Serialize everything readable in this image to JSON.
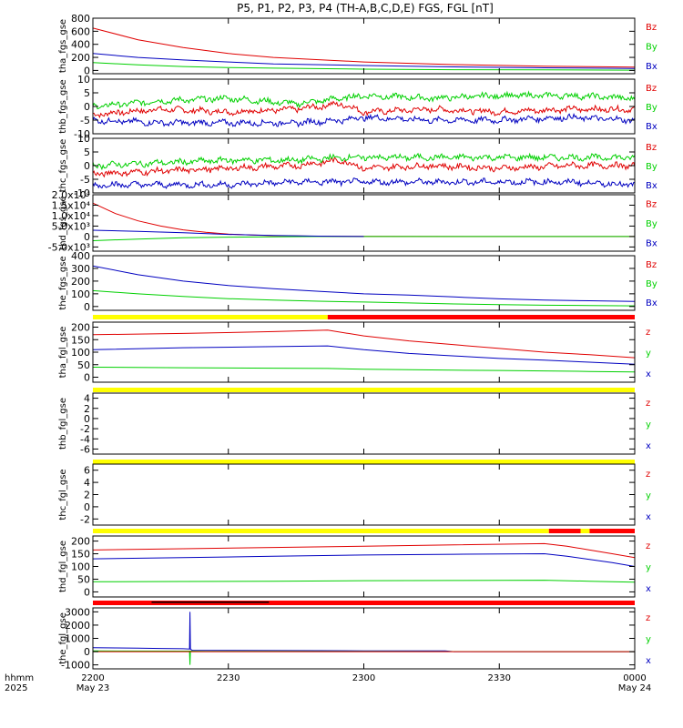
{
  "figure": {
    "title": "P5, P1, P2, P3, P4 (TH-A,B,C,D,E) FGS, FGL [nT]",
    "colors": {
      "z": "#e00000",
      "y": "#00d000",
      "x": "#0000c0",
      "yellow": "#ffff00",
      "red": "#ff0000",
      "black": "#000000"
    }
  },
  "xaxis": {
    "row_label_top": "hhmm",
    "row_label_bottom": "2025",
    "ticks": [
      {
        "value": 0,
        "label": "2200",
        "sub": "May 23"
      },
      {
        "value": 30,
        "label": "2230",
        "sub": ""
      },
      {
        "value": 60,
        "label": "2300",
        "sub": ""
      },
      {
        "value": 90,
        "label": "2330",
        "sub": ""
      },
      {
        "value": 120,
        "label": "0000",
        "sub": "May 24"
      }
    ],
    "range_minutes": [
      0,
      120
    ]
  },
  "chart_data": [
    {
      "type": "line",
      "ylabel": "tha_fgs_gse",
      "ylim": [
        -50,
        800
      ],
      "yticks": [
        {
          "v": 0,
          "t": "0"
        },
        {
          "v": 200,
          "t": "200"
        },
        {
          "v": 400,
          "t": "400"
        },
        {
          "v": 600,
          "t": "600"
        },
        {
          "v": 800,
          "t": "800"
        }
      ],
      "legend": [
        "Bz",
        "By",
        "Bx"
      ],
      "series": [
        {
          "name": "Bz",
          "comp": "z",
          "x": [
            0,
            10,
            20,
            30,
            40,
            60,
            80,
            100,
            120
          ],
          "y": [
            650,
            470,
            350,
            260,
            200,
            130,
            90,
            65,
            50
          ]
        },
        {
          "name": "By",
          "comp": "y",
          "x": [
            0,
            10,
            20,
            30,
            40,
            60,
            80,
            100,
            120
          ],
          "y": [
            120,
            85,
            60,
            45,
            35,
            20,
            12,
            8,
            5
          ]
        },
        {
          "name": "Bx",
          "comp": "x",
          "x": [
            0,
            10,
            20,
            30,
            40,
            60,
            80,
            100,
            120
          ],
          "y": [
            260,
            200,
            160,
            130,
            100,
            75,
            55,
            40,
            30
          ]
        }
      ]
    },
    {
      "type": "line",
      "ylabel": "thb_fgs_gse",
      "ylim": [
        -10,
        10
      ],
      "yticks": [
        {
          "v": -10,
          "t": "-10"
        },
        {
          "v": -5,
          "t": "-5"
        },
        {
          "v": 0,
          "t": "0"
        },
        {
          "v": 5,
          "t": "5"
        },
        {
          "v": 10,
          "t": "10"
        }
      ],
      "legend": [
        "Bz",
        "By",
        "Bx"
      ],
      "noise": true,
      "series": [
        {
          "name": "Bz",
          "comp": "z",
          "x": [
            0,
            15,
            30,
            45,
            55,
            60,
            75,
            90,
            105,
            120
          ],
          "y": [
            -3,
            -1,
            -2,
            -1,
            1,
            -2,
            -1,
            -2,
            -1,
            -1
          ]
        },
        {
          "name": "By",
          "comp": "y",
          "x": [
            0,
            15,
            30,
            45,
            55,
            60,
            75,
            90,
            105,
            120
          ],
          "y": [
            0,
            2,
            3,
            1,
            3,
            4,
            3,
            4,
            4,
            3
          ]
        },
        {
          "name": "Bx",
          "comp": "x",
          "x": [
            0,
            15,
            30,
            45,
            55,
            60,
            75,
            90,
            105,
            120
          ],
          "y": [
            -5,
            -6,
            -6,
            -6,
            -5,
            -4,
            -5,
            -5,
            -4,
            -5
          ]
        }
      ]
    },
    {
      "type": "line",
      "ylabel": "thc_fgs_gse",
      "ylim": [
        -10,
        10
      ],
      "yticks": [
        {
          "v": -10,
          "t": "-10"
        },
        {
          "v": -5,
          "t": "-5"
        },
        {
          "v": 0,
          "t": "0"
        },
        {
          "v": 5,
          "t": "5"
        },
        {
          "v": 10,
          "t": "10"
        }
      ],
      "legend": [
        "Bz",
        "By",
        "Bx"
      ],
      "noise": true,
      "series": [
        {
          "name": "Bz",
          "comp": "z",
          "x": [
            0,
            15,
            30,
            45,
            55,
            60,
            75,
            90,
            105,
            120
          ],
          "y": [
            -3,
            -2,
            -1,
            0,
            2,
            -1,
            0,
            -1,
            0,
            0
          ]
        },
        {
          "name": "By",
          "comp": "y",
          "x": [
            0,
            15,
            30,
            45,
            55,
            60,
            75,
            90,
            105,
            120
          ],
          "y": [
            0,
            1,
            2,
            2,
            3,
            3,
            3,
            3,
            3,
            3
          ]
        },
        {
          "name": "Bx",
          "comp": "x",
          "x": [
            0,
            15,
            30,
            45,
            55,
            60,
            75,
            90,
            105,
            120
          ],
          "y": [
            -7,
            -7,
            -7,
            -6,
            -6,
            -6,
            -6,
            -6,
            -6,
            -7
          ]
        }
      ]
    },
    {
      "type": "line",
      "ylabel": "thd_fgs_gse",
      "ylim": [
        -7000,
        20000
      ],
      "yticks": [
        {
          "v": -5000,
          "t": "-5.0x10³"
        },
        {
          "v": 0,
          "t": "0"
        },
        {
          "v": 5000,
          "t": "5.0x10³"
        },
        {
          "v": 10000,
          "t": "1.0x10⁴"
        },
        {
          "v": 15000,
          "t": "1.5x10⁴"
        },
        {
          "v": 20000,
          "t": "2.0x10⁴"
        }
      ],
      "legend": [
        "Bz",
        "By",
        "Bx"
      ],
      "series": [
        {
          "name": "Bz",
          "comp": "z",
          "x": [
            0,
            5,
            10,
            15,
            20,
            25,
            30,
            35,
            40,
            50,
            60,
            120
          ],
          "y": [
            16000,
            11000,
            7500,
            5000,
            3200,
            2000,
            1200,
            700,
            400,
            150,
            50,
            0
          ]
        },
        {
          "name": "By",
          "comp": "y",
          "x": [
            0,
            10,
            20,
            30,
            40,
            50,
            60,
            120
          ],
          "y": [
            -2000,
            -1200,
            -600,
            -300,
            -100,
            0,
            0,
            0
          ]
        },
        {
          "name": "Bx",
          "comp": "x",
          "x": [
            0,
            10,
            20,
            30,
            40,
            50,
            60
          ],
          "y": [
            3000,
            2500,
            1800,
            1000,
            500,
            200,
            0
          ]
        }
      ]
    },
    {
      "type": "line",
      "ylabel": "the_fgs_gse",
      "ylim": [
        -30,
        400
      ],
      "yticks": [
        {
          "v": 0,
          "t": "0"
        },
        {
          "v": 100,
          "t": "100"
        },
        {
          "v": 200,
          "t": "200"
        },
        {
          "v": 300,
          "t": "300"
        },
        {
          "v": 400,
          "t": "400"
        }
      ],
      "legend": [
        "Bz",
        "By",
        "Bx"
      ],
      "series": [
        {
          "name": "Bx",
          "comp": "x",
          "x": [
            0,
            10,
            20,
            30,
            40,
            50,
            60,
            70,
            80,
            90,
            100,
            110,
            120
          ],
          "y": [
            320,
            250,
            200,
            165,
            140,
            120,
            100,
            90,
            75,
            60,
            50,
            45,
            40
          ]
        },
        {
          "name": "By",
          "comp": "y",
          "x": [
            0,
            10,
            20,
            30,
            40,
            50,
            60,
            70,
            80,
            90,
            100,
            110,
            120
          ],
          "y": [
            125,
            100,
            80,
            62,
            50,
            42,
            35,
            28,
            20,
            15,
            10,
            8,
            5
          ]
        }
      ]
    },
    {
      "type": "line",
      "ylabel": "tha_fgl_gse",
      "ylim": [
        -20,
        220
      ],
      "yticks": [
        {
          "v": 0,
          "t": "0"
        },
        {
          "v": 50,
          "t": "50"
        },
        {
          "v": 100,
          "t": "100"
        },
        {
          "v": 150,
          "t": "150"
        },
        {
          "v": 200,
          "t": "200"
        }
      ],
      "legend": [
        "z",
        "y",
        "x"
      ],
      "status_bar": [
        {
          "from": 0,
          "to": 52,
          "color": "yellow"
        },
        {
          "from": 52,
          "to": 120,
          "color": "red"
        }
      ],
      "series": [
        {
          "name": "z",
          "comp": "z",
          "x": [
            0,
            20,
            40,
            52,
            60,
            70,
            80,
            90,
            100,
            110,
            120
          ],
          "y": [
            170,
            175,
            182,
            188,
            165,
            145,
            130,
            115,
            100,
            90,
            78
          ]
        },
        {
          "name": "x",
          "comp": "x",
          "x": [
            0,
            20,
            40,
            52,
            60,
            70,
            80,
            90,
            100,
            110,
            120
          ],
          "y": [
            110,
            118,
            122,
            125,
            110,
            95,
            85,
            75,
            68,
            60,
            52
          ]
        },
        {
          "name": "y",
          "comp": "y",
          "x": [
            0,
            20,
            40,
            52,
            60,
            70,
            80,
            90,
            100,
            110,
            120
          ],
          "y": [
            40,
            38,
            36,
            35,
            32,
            30,
            28,
            27,
            25,
            23,
            21
          ]
        }
      ]
    },
    {
      "type": "line",
      "ylabel": "thb_fgl_gse",
      "ylim": [
        -7,
        5
      ],
      "yticks": [
        {
          "v": -6,
          "t": "-6"
        },
        {
          "v": -4,
          "t": "-4"
        },
        {
          "v": -2,
          "t": "-2"
        },
        {
          "v": 0,
          "t": "0"
        },
        {
          "v": 2,
          "t": "2"
        },
        {
          "v": 4,
          "t": "4"
        }
      ],
      "legend": [
        "z",
        "y",
        "x"
      ],
      "status_bar": [
        {
          "from": 0,
          "to": 120,
          "color": "yellow"
        }
      ],
      "series": []
    },
    {
      "type": "line",
      "ylabel": "thc_fgl_gse",
      "ylim": [
        -3,
        7
      ],
      "yticks": [
        {
          "v": -2,
          "t": "-2"
        },
        {
          "v": 0,
          "t": "0"
        },
        {
          "v": 2,
          "t": "2"
        },
        {
          "v": 4,
          "t": "4"
        },
        {
          "v": 6,
          "t": "6"
        }
      ],
      "legend": [
        "z",
        "y",
        "x"
      ],
      "status_bar": [
        {
          "from": 0,
          "to": 120,
          "color": "yellow"
        }
      ],
      "series": []
    },
    {
      "type": "line",
      "ylabel": "thd_fgl_gse",
      "ylim": [
        -20,
        220
      ],
      "yticks": [
        {
          "v": 0,
          "t": "0"
        },
        {
          "v": 50,
          "t": "50"
        },
        {
          "v": 100,
          "t": "100"
        },
        {
          "v": 150,
          "t": "150"
        },
        {
          "v": 200,
          "t": "200"
        }
      ],
      "legend": [
        "z",
        "y",
        "x"
      ],
      "status_bar": [
        {
          "from": 0,
          "to": 101,
          "color": "yellow"
        },
        {
          "from": 101,
          "to": 108,
          "color": "red"
        },
        {
          "from": 108,
          "to": 110,
          "color": "yellow"
        },
        {
          "from": 110,
          "to": 120,
          "color": "red"
        }
      ],
      "series": [
        {
          "name": "z",
          "comp": "z",
          "x": [
            0,
            20,
            40,
            60,
            80,
            100,
            105,
            110,
            115,
            120
          ],
          "y": [
            165,
            170,
            175,
            180,
            185,
            190,
            180,
            165,
            150,
            135
          ]
        },
        {
          "name": "x",
          "comp": "x",
          "x": [
            0,
            20,
            40,
            60,
            80,
            100,
            105,
            110,
            115,
            120
          ],
          "y": [
            130,
            135,
            140,
            145,
            148,
            150,
            140,
            128,
            115,
            100
          ]
        },
        {
          "name": "y",
          "comp": "y",
          "x": [
            0,
            20,
            40,
            60,
            80,
            100,
            110,
            120
          ],
          "y": [
            40,
            41,
            42,
            44,
            45,
            46,
            42,
            38
          ]
        }
      ]
    },
    {
      "type": "line",
      "ylabel": "the_fgl_gse",
      "ylim": [
        -1300,
        3300
      ],
      "yticks": [
        {
          "v": -1000,
          "t": "-1000"
        },
        {
          "v": 0,
          "t": "0"
        },
        {
          "v": 1000,
          "t": "1000"
        },
        {
          "v": 2000,
          "t": "2000"
        },
        {
          "v": 3000,
          "t": "3000"
        }
      ],
      "legend": [
        "z",
        "y",
        "x"
      ],
      "status_bar": [
        {
          "from": 0,
          "to": 120,
          "color": "red"
        }
      ],
      "status_bar_black": [
        {
          "from": 13,
          "to": 39
        }
      ],
      "series": [
        {
          "name": "x",
          "comp": "x",
          "x": [
            0,
            5,
            10,
            15,
            20,
            21.4,
            21.5,
            21.6,
            22,
            30,
            40,
            50,
            60,
            70,
            78,
            80,
            120
          ],
          "y": [
            300,
            280,
            260,
            240,
            220,
            200,
            3000,
            200,
            100,
            90,
            80,
            70,
            60,
            55,
            50,
            0,
            0
          ]
        },
        {
          "name": "y",
          "comp": "y",
          "x": [
            0,
            20,
            21.4,
            21.5,
            21.6,
            25,
            40,
            60,
            80,
            100,
            120
          ],
          "y": [
            50,
            40,
            40,
            -1000,
            40,
            20,
            15,
            10,
            5,
            0,
            0
          ]
        },
        {
          "name": "z",
          "comp": "z",
          "x": [
            0,
            120
          ],
          "y": [
            0,
            0
          ]
        }
      ]
    }
  ]
}
